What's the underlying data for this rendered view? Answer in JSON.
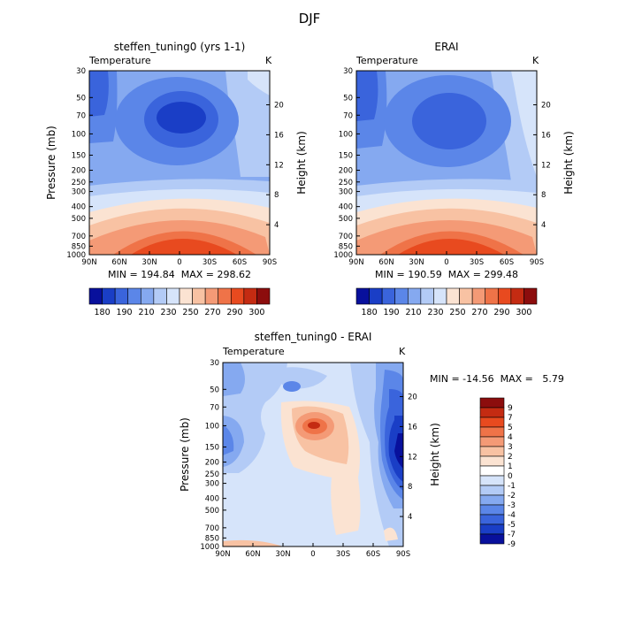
{
  "figure_title": "DJF",
  "panel_variable": "Temperature",
  "panel_units": "K",
  "chart_data": [
    {
      "type": "contour",
      "title": "steffen_tuning0 (yrs 1-1)",
      "variable": "Temperature",
      "units": "K",
      "ylabel": "Pressure (mb)",
      "ylabel_right": "Height (km)",
      "x_ticks": [
        "90N",
        "60N",
        "30N",
        "0",
        "30S",
        "60S",
        "90S"
      ],
      "y_ticks": [
        "30",
        "50",
        "70",
        "100",
        "150",
        "200",
        "250",
        "300",
        "400",
        "500",
        "700",
        "850",
        "1000"
      ],
      "y_ticks_right": [
        "20",
        "16",
        "12",
        "8",
        "4"
      ],
      "stats": "MIN = 194.84  MAX = 298.62",
      "levels": [
        "180",
        "190",
        "200",
        "210",
        "220",
        "230",
        "240",
        "250",
        "260",
        "270",
        "280",
        "290",
        "300"
      ],
      "level_labels": [
        "180",
        "190",
        "210",
        "230",
        "250",
        "270",
        "290",
        "300"
      ]
    },
    {
      "type": "contour",
      "title": "ERAI",
      "variable": "Temperature",
      "units": "K",
      "ylabel": "Pressure (mb)",
      "ylabel_right": "Height (km)",
      "x_ticks": [
        "90N",
        "60N",
        "30N",
        "0",
        "30S",
        "60S",
        "90S"
      ],
      "y_ticks": [
        "30",
        "50",
        "70",
        "100",
        "150",
        "200",
        "250",
        "300",
        "400",
        "500",
        "700",
        "850",
        "1000"
      ],
      "y_ticks_right": [
        "20",
        "16",
        "12",
        "8",
        "4"
      ],
      "stats": "MIN = 190.59  MAX = 299.48",
      "levels": [
        "180",
        "190",
        "200",
        "210",
        "220",
        "230",
        "240",
        "250",
        "260",
        "270",
        "280",
        "290",
        "300"
      ],
      "level_labels": [
        "180",
        "190",
        "210",
        "230",
        "250",
        "270",
        "290",
        "300"
      ]
    },
    {
      "type": "contour",
      "title": "steffen_tuning0 - ERAI",
      "variable": "Temperature",
      "units": "K",
      "ylabel": "Pressure (mb)",
      "ylabel_right": "Height (km)",
      "x_ticks": [
        "90N",
        "60N",
        "30N",
        "0",
        "30S",
        "60S",
        "90S"
      ],
      "y_ticks": [
        "30",
        "50",
        "70",
        "100",
        "150",
        "200",
        "250",
        "300",
        "400",
        "500",
        "700",
        "850",
        "1000"
      ],
      "y_ticks_right": [
        "20",
        "16",
        "12",
        "8",
        "4"
      ],
      "stats": "MIN = -14.56  MAX =   5.79",
      "levels": [
        "9",
        "7",
        "5",
        "4",
        "3",
        "2",
        "1",
        "0",
        "-1",
        "-2",
        "-3",
        "-4",
        "-5",
        "-7",
        "-9"
      ]
    }
  ],
  "colors": {
    "cold_scale": [
      "#08109c",
      "#1a3ec6",
      "#3a64dc",
      "#5b86e8",
      "#85a9f0",
      "#b3cbf6",
      "#d6e4fa"
    ],
    "warm_scale": [
      "#fbe3d2",
      "#f8c2a3",
      "#f49a76",
      "#ef7348",
      "#e84a1f",
      "#c42b12",
      "#8c0d0d"
    ],
    "diff_scale": [
      "#8c0d0d",
      "#c42b12",
      "#e84a1f",
      "#ef7348",
      "#f49a76",
      "#f8c2a3",
      "#fbe3d2",
      "#ffffff",
      "#d6e4fa",
      "#b3cbf6",
      "#85a9f0",
      "#5b86e8",
      "#3a64dc",
      "#1a3ec6",
      "#08109c"
    ]
  }
}
